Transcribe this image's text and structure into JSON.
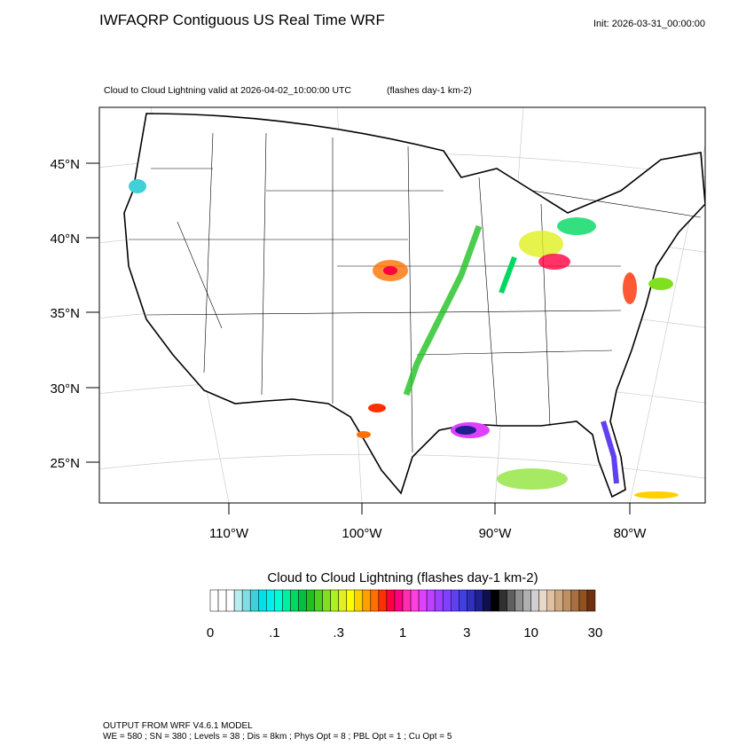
{
  "header": {
    "title": "IWFAQRP Contiguous US Real Time WRF",
    "init": "Init: 2026-03-31_00:00:00",
    "field": "Cloud to Cloud Lightning valid at 2026-04-02_10:00:00 UTC",
    "units": "(flashes day-1 km-2)"
  },
  "map": {
    "lat_labels": [
      "45°N",
      "40°N",
      "35°N",
      "30°N",
      "25°N"
    ],
    "lon_labels": [
      "110°W",
      "100°W",
      "90°W",
      "80°W"
    ]
  },
  "colorbar": {
    "title": "Cloud to Cloud Lightning  (flashes day-1 km-2)",
    "labels": [
      "0",
      ".1",
      ".3",
      "1",
      "3",
      "10",
      "30"
    ],
    "colors": [
      "#ffffff",
      "#ffffff",
      "#ffffff",
      "#b8eef0",
      "#7fdfe4",
      "#40d0d8",
      "#00e0e8",
      "#00f0f0",
      "#00ffd8",
      "#00f0a0",
      "#00d860",
      "#00c040",
      "#20c020",
      "#50d020",
      "#80e020",
      "#b0f020",
      "#e0f020",
      "#ffff00",
      "#ffd000",
      "#ffa000",
      "#ff7000",
      "#ff3000",
      "#ff0040",
      "#ff0080",
      "#ff30b0",
      "#ff40e0",
      "#e040ff",
      "#c040ff",
      "#a040ff",
      "#8040ff",
      "#6040f0",
      "#4040e0",
      "#3030c0",
      "#202090",
      "#101050",
      "#000000",
      "#303030",
      "#606060",
      "#909090",
      "#b0b0b0",
      "#d0d0d0",
      "#e8d8c8",
      "#e0c0a0",
      "#d0a880",
      "#c09060",
      "#a87040",
      "#905020",
      "#703010"
    ]
  },
  "footer": {
    "line1": "OUTPUT FROM WRF V4.6.1 MODEL",
    "line2": "WE = 580 ; SN = 380 ; Levels = 38 ; Dis = 8km ; Phys Opt = 8 ; PBL Opt = 1 ; Cu Opt = 5"
  }
}
